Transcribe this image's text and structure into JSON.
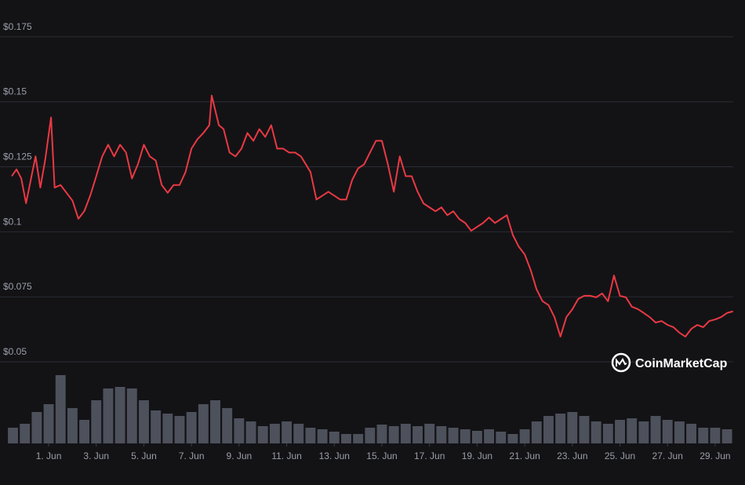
{
  "chart_data": {
    "type": "line",
    "watermark": "CoinMarketCap",
    "background": "#131316",
    "grid": true,
    "x": [
      -0.55,
      -0.35,
      -0.15,
      0.05,
      0.25,
      0.45,
      0.65,
      0.85,
      1.1,
      1.25,
      1.5,
      1.75,
      2.0,
      2.25,
      2.5,
      2.75,
      3.0,
      3.25,
      3.5,
      3.75,
      4.0,
      4.25,
      4.5,
      4.75,
      5.0,
      5.25,
      5.5,
      5.75,
      6.0,
      6.25,
      6.5,
      6.75,
      7.0,
      7.25,
      7.5,
      7.75,
      7.85,
      8.15,
      8.35,
      8.6,
      8.85,
      9.1,
      9.35,
      9.6,
      9.85,
      10.1,
      10.35,
      10.6,
      10.85,
      11.1,
      11.35,
      11.6,
      12.0,
      12.25,
      12.5,
      12.75,
      13.0,
      13.25,
      13.5,
      13.75,
      14.0,
      14.25,
      14.5,
      14.75,
      15.0,
      15.25,
      15.5,
      15.75,
      16.0,
      16.25,
      16.5,
      16.75,
      17.0,
      17.25,
      17.5,
      17.75,
      18.0,
      18.25,
      18.5,
      18.75,
      19.0,
      19.25,
      19.5,
      19.75,
      20.0,
      20.25,
      20.5,
      20.75,
      21.0,
      21.25,
      21.5,
      21.75,
      22.0,
      22.25,
      22.5,
      22.75,
      23.0,
      23.25,
      23.5,
      23.75,
      24.0,
      24.25,
      24.5,
      24.75,
      25.0,
      25.25,
      25.5,
      25.75,
      26.0,
      26.25,
      26.5,
      26.75,
      27.0,
      27.25,
      27.5,
      27.75,
      28.0,
      28.25,
      28.5,
      28.75,
      29.0,
      29.25,
      29.5,
      29.75
    ],
    "xlim": [
      -0.55,
      29.76
    ],
    "xticks": [
      {
        "value": 1,
        "label": "1. Jun"
      },
      {
        "value": 3,
        "label": "3. Jun"
      },
      {
        "value": 5,
        "label": "5. Jun"
      },
      {
        "value": 7,
        "label": "7. Jun"
      },
      {
        "value": 9,
        "label": "9. Jun"
      },
      {
        "value": 11,
        "label": "11. Jun"
      },
      {
        "value": 13,
        "label": "13. Jun"
      },
      {
        "value": 15,
        "label": "15. Jun"
      },
      {
        "value": 17,
        "label": "17. Jun"
      },
      {
        "value": 19,
        "label": "19. Jun"
      },
      {
        "value": 21,
        "label": "21. Jun"
      },
      {
        "value": 23,
        "label": "23. Jun"
      },
      {
        "value": 25,
        "label": "25. Jun"
      },
      {
        "value": 27,
        "label": "27. Jun"
      },
      {
        "value": 29,
        "label": "29. Jun"
      }
    ],
    "ylim": [
      0.0473,
      0.1816
    ],
    "yticks": [
      {
        "value": 0.175,
        "label": "$0.175"
      },
      {
        "value": 0.15,
        "label": "$0.15"
      },
      {
        "value": 0.125,
        "label": "$0.125"
      },
      {
        "value": 0.1,
        "label": "$0.1"
      },
      {
        "value": 0.075,
        "label": "$0.075"
      },
      {
        "value": 0.05,
        "label": "$0.05"
      }
    ],
    "y2lim": [
      0,
      90
    ],
    "series": [
      {
        "color": "#ea3943",
        "values": [
          0.1214,
          0.124,
          0.1205,
          0.111,
          0.12,
          0.129,
          0.117,
          0.1274,
          0.144,
          0.117,
          0.118,
          0.115,
          0.112,
          0.105,
          0.108,
          0.114,
          0.1214,
          0.129,
          0.1335,
          0.129,
          0.1335,
          0.1305,
          0.1205,
          0.126,
          0.1335,
          0.129,
          0.1274,
          0.118,
          0.115,
          0.118,
          0.118,
          0.123,
          0.132,
          0.1356,
          0.138,
          0.141,
          0.1524,
          0.141,
          0.1395,
          0.1305,
          0.129,
          0.132,
          0.138,
          0.135,
          0.1395,
          0.1365,
          0.141,
          0.132,
          0.132,
          0.1305,
          0.1305,
          0.129,
          0.123,
          0.1124,
          0.1139,
          0.1154,
          0.1139,
          0.1124,
          0.1124,
          0.1199,
          0.1244,
          0.1259,
          0.1305,
          0.135,
          0.135,
          0.126,
          0.1154,
          0.129,
          0.1214,
          0.1214,
          0.1154,
          0.1109,
          0.1094,
          0.1079,
          0.1094,
          0.1064,
          0.1079,
          0.1049,
          0.1034,
          0.1004,
          0.1019,
          0.1034,
          0.1055,
          0.1034,
          0.1049,
          0.1064,
          0.0988,
          0.0943,
          0.0913,
          0.0853,
          0.0778,
          0.0733,
          0.0718,
          0.0672,
          0.0597,
          0.0672,
          0.0702,
          0.0742,
          0.0754,
          0.0754,
          0.0748,
          0.0763,
          0.0733,
          0.0832,
          0.0754,
          0.0748,
          0.0712,
          0.0703,
          0.0688,
          0.0672,
          0.0651,
          0.0657,
          0.0642,
          0.0633,
          0.0612,
          0.0597,
          0.0627,
          0.0642,
          0.0633,
          0.0657,
          0.0663,
          0.0672,
          0.0688,
          0.0694
        ]
      },
      {
        "type": "bar",
        "axis": "y2",
        "color": "#4d515c",
        "x": [
          -0.5,
          0,
          0.5,
          1,
          1.5,
          2,
          2.5,
          3,
          3.5,
          4,
          4.5,
          5,
          5.5,
          6,
          6.5,
          7,
          7.5,
          8,
          8.5,
          9,
          9.5,
          10,
          10.5,
          11,
          11.5,
          12,
          12.5,
          13,
          13.5,
          14,
          14.5,
          15,
          15.5,
          16,
          16.5,
          17,
          17.5,
          18,
          18.5,
          19,
          19.5,
          20,
          20.5,
          21,
          21.5,
          22,
          22.5,
          23,
          23.5,
          24,
          24.5,
          25,
          25.5,
          26,
          26.5,
          27,
          27.5,
          28,
          28.5,
          29,
          29.5
        ],
        "values": [
          20,
          25,
          40,
          50,
          87,
          45,
          30,
          55,
          70,
          72,
          70,
          55,
          42,
          38,
          35,
          40,
          50,
          55,
          45,
          32,
          28,
          22,
          25,
          28,
          25,
          20,
          18,
          15,
          12,
          12,
          20,
          24,
          22,
          25,
          22,
          25,
          22,
          20,
          18,
          16,
          18,
          15,
          12,
          18,
          28,
          35,
          38,
          40,
          35,
          28,
          25,
          30,
          32,
          28,
          35,
          30,
          28,
          25,
          20,
          20,
          18
        ]
      }
    ]
  }
}
